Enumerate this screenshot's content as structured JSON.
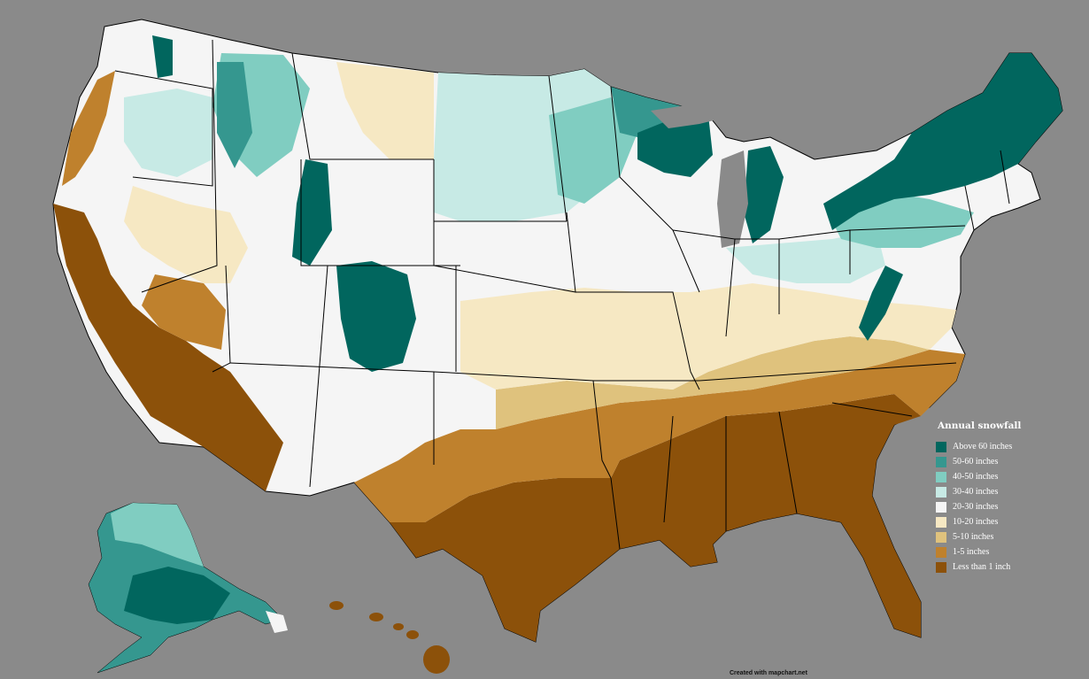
{
  "legend": {
    "title": "Annual snowfall",
    "items": [
      {
        "label": "Above 60 inches",
        "color": "#01665e"
      },
      {
        "label": "50-60 inches",
        "color": "#35978f"
      },
      {
        "label": "40-50 inches",
        "color": "#80cdc1"
      },
      {
        "label": "30-40 inches",
        "color": "#c7eae5"
      },
      {
        "label": "20-30 inches",
        "color": "#f5f5f5"
      },
      {
        "label": "10-20 inches",
        "color": "#f6e8c3"
      },
      {
        "label": "5-10 inches",
        "color": "#dfc27d"
      },
      {
        "label": "1-5 inches",
        "color": "#bf812d"
      },
      {
        "label": "Less than 1 inch",
        "color": "#8c510a"
      }
    ]
  },
  "credit": "Created with mapchart.net",
  "map": {
    "background": "#8a8a8a",
    "border_color": "#000000",
    "regions": [
      {
        "name": "Maine",
        "class": "Above 60 inches"
      },
      {
        "name": "New Hampshire",
        "class": "Above 60 inches"
      },
      {
        "name": "Vermont",
        "class": "Above 60 inches"
      },
      {
        "name": "New York",
        "class": "Above 60 inches"
      },
      {
        "name": "Michigan Upper Peninsula",
        "class": "Above 60 inches"
      },
      {
        "name": "Colorado Rockies",
        "class": "Above 60 inches"
      },
      {
        "name": "Wyoming Rockies",
        "class": "Above 60 inches"
      },
      {
        "name": "Florida",
        "class": "Less than 1 inch"
      },
      {
        "name": "Louisiana",
        "class": "Less than 1 inch"
      },
      {
        "name": "Texas",
        "class": "Less than 1 inch"
      },
      {
        "name": "Arizona",
        "class": "Less than 1 inch"
      },
      {
        "name": "California",
        "class": "Less than 1 inch"
      },
      {
        "name": "Hawaii",
        "class": "Less than 1 inch"
      },
      {
        "name": "Alaska",
        "class": "40-50 inches"
      }
    ]
  }
}
